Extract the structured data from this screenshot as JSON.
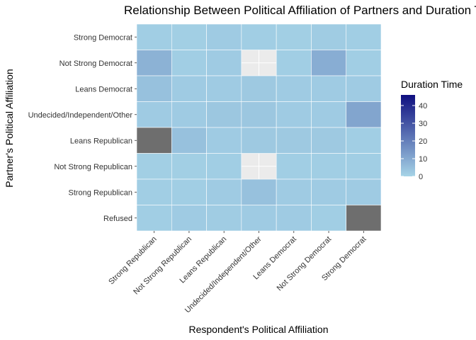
{
  "chart_data": {
    "type": "heatmap",
    "title": "Relationship Between Political Affiliation of Partners and Duration Time",
    "xlabel": "Respondent's Political Affiliation",
    "ylabel": "Partner's Political Affiliation",
    "x_categories": [
      "Strong Republican",
      "Not Strong Republican",
      "Leans Republican",
      "Undecided/Independent/Other",
      "Leans Democrat",
      "Not Strong Democrat",
      "Strong Democrat"
    ],
    "y_categories": [
      "Strong Democrat",
      "Not Strong Democrat",
      "Leans Democrat",
      "Undecided/Independent/Other",
      "Leans Republican",
      "Not Strong Republican",
      "Strong Republican",
      "Refused"
    ],
    "values": [
      [
        1.5,
        1.2,
        2,
        1.5,
        1.2,
        1.8,
        1.5
      ],
      [
        8,
        1.5,
        2,
        null,
        1.5,
        9,
        1.5
      ],
      [
        4.5,
        2,
        2,
        2.5,
        2,
        2,
        2
      ],
      [
        2,
        2,
        3,
        3,
        2,
        2,
        11
      ],
      [
        "NA",
        4.5,
        2,
        2.5,
        2.5,
        2.5,
        1.5
      ],
      [
        1.2,
        1.2,
        1.5,
        null,
        1.5,
        1.5,
        1.5
      ],
      [
        1.5,
        1.5,
        2,
        4.5,
        2,
        2,
        2
      ],
      [
        1.5,
        2,
        1.8,
        2,
        2,
        1.5,
        "NA"
      ]
    ],
    "na_color": "#6e6e6e",
    "legend": {
      "title": "Duration Time",
      "ticks": [
        0,
        10,
        20,
        30,
        40
      ],
      "range": [
        0,
        46
      ],
      "low_color": "#a6d4e7",
      "high_color": "#0f0f80",
      "placement": "right"
    },
    "grid": true,
    "background": "#ebebeb"
  }
}
